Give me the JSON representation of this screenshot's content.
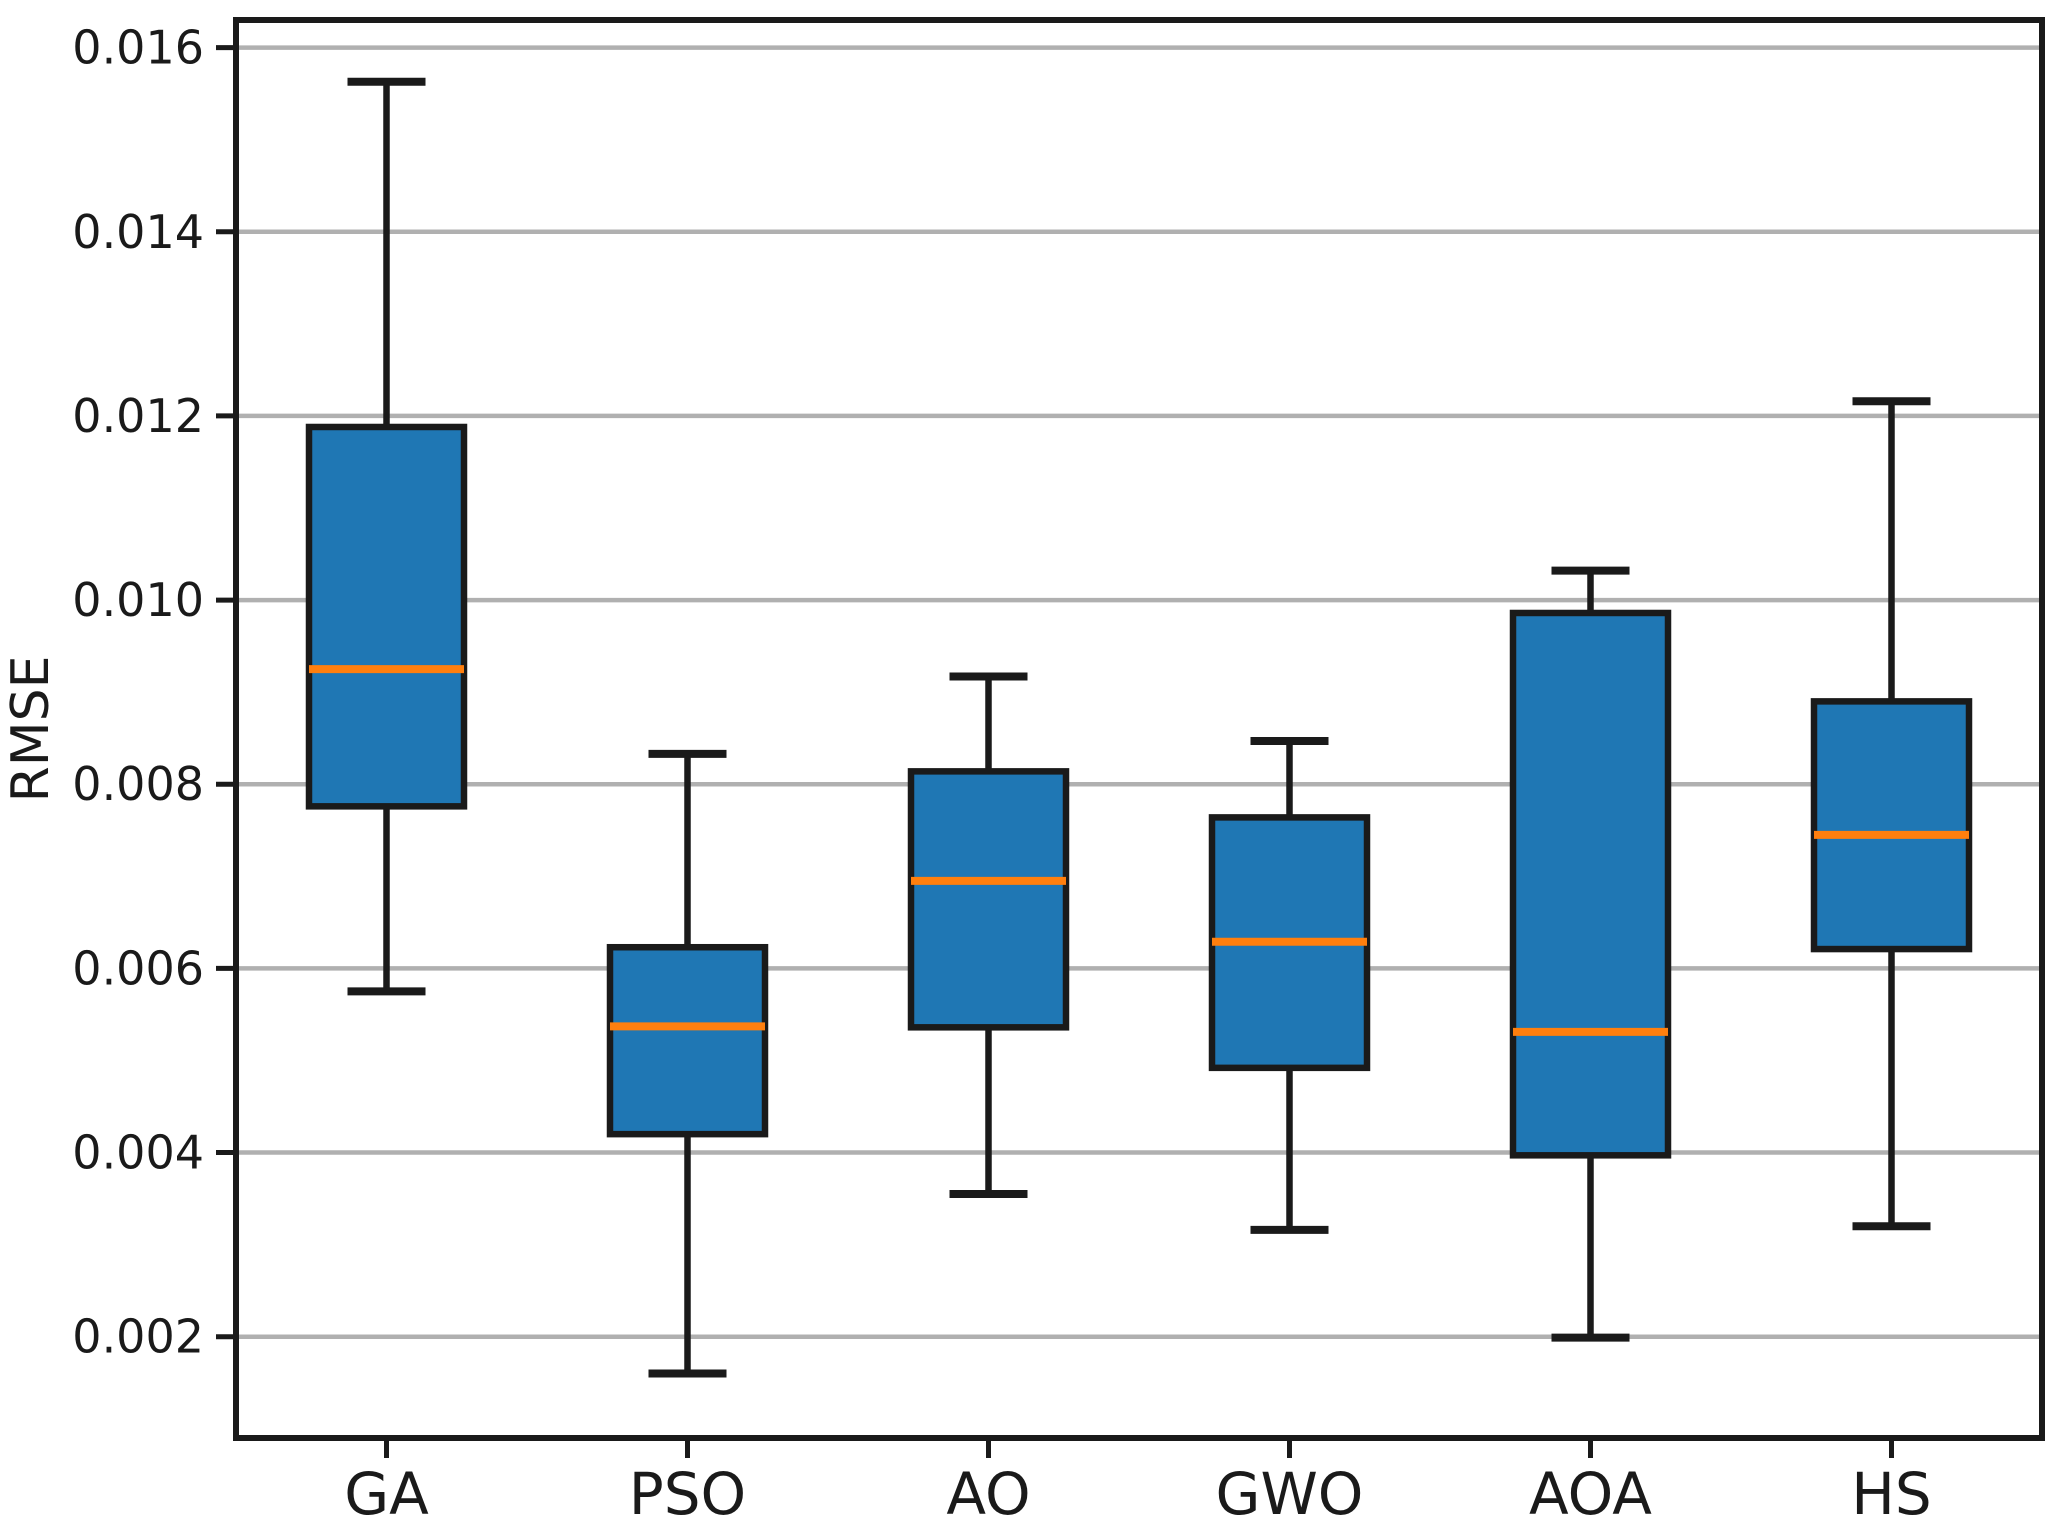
{
  "chart_data": {
    "type": "box",
    "title": "",
    "xlabel": "",
    "ylabel": "RMSE",
    "categories": [
      "GA",
      "PSO",
      "AO",
      "GWO",
      "AOA",
      "HS"
    ],
    "boxes": [
      {
        "label": "GA",
        "whisker_low": 0.00575,
        "q1": 0.00776,
        "median": 0.00925,
        "q3": 0.01188,
        "whisker_high": 0.01563
      },
      {
        "label": "PSO",
        "whisker_low": 0.0016,
        "q1": 0.0042,
        "median": 0.00537,
        "q3": 0.00623,
        "whisker_high": 0.00833
      },
      {
        "label": "AO",
        "whisker_low": 0.00355,
        "q1": 0.00536,
        "median": 0.00695,
        "q3": 0.00814,
        "whisker_high": 0.00917
      },
      {
        "label": "GWO",
        "whisker_low": 0.00316,
        "q1": 0.00492,
        "median": 0.00629,
        "q3": 0.00764,
        "whisker_high": 0.00847
      },
      {
        "label": "AOA",
        "whisker_low": 0.00199,
        "q1": 0.00397,
        "median": 0.00531,
        "q3": 0.00986,
        "whisker_high": 0.01032
      },
      {
        "label": "HS",
        "whisker_low": 0.0032,
        "q1": 0.00621,
        "median": 0.00745,
        "q3": 0.0089,
        "whisker_high": 0.01216
      }
    ],
    "yticks": [
      0.002,
      0.004,
      0.006,
      0.008,
      0.01,
      0.012,
      0.014,
      0.016
    ],
    "ytick_labels": [
      "0.002",
      "0.004",
      "0.006",
      "0.008",
      "0.010",
      "0.012",
      "0.014",
      "0.016"
    ],
    "ylim": [
      0.0009,
      0.0163
    ],
    "grid": "horizontal",
    "legend_position": "none",
    "colors": {
      "box_fill": "#1f77b4",
      "median": "#ff7f0e",
      "line": "#1a1a1a",
      "grid": "#b0b0b0",
      "background": "#ffffff"
    }
  }
}
